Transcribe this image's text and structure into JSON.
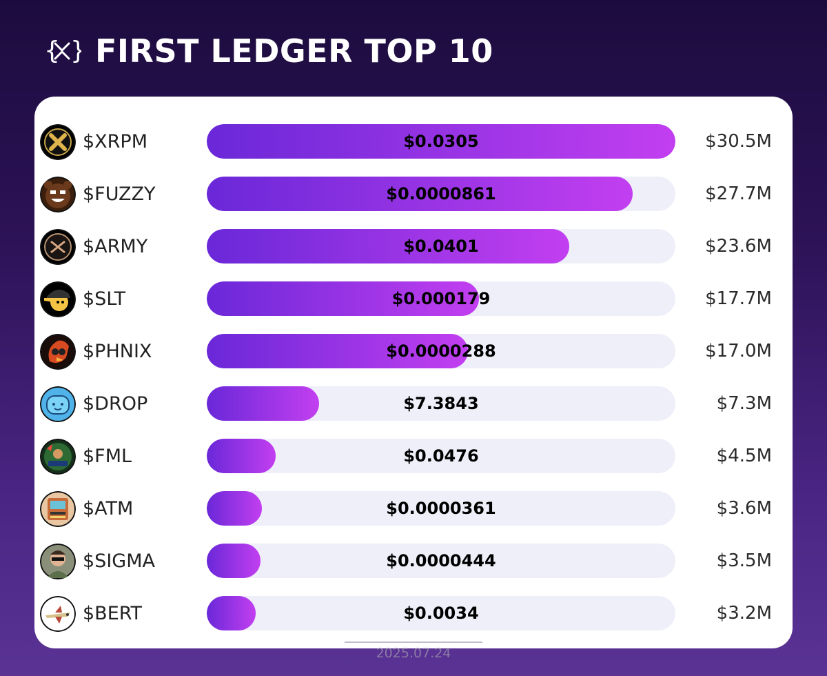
{
  "header": {
    "title": "FIRST LEDGER TOP 10",
    "logo_icon": "xrp-braces-logo"
  },
  "footer": {
    "date": "2025.07.24"
  },
  "colors": {
    "background_top": "#1c0c3e",
    "background_bottom": "#5a3394",
    "bar_start": "#6a28d8",
    "bar_end": "#c23ff0",
    "track": "#efeffa",
    "card": "#ffffff"
  },
  "chart_data": {
    "type": "bar",
    "orientation": "horizontal",
    "title": "FIRST LEDGER TOP 10",
    "categories": [
      "$XRPM",
      "$FUZZY",
      "$ARMY",
      "$SLT",
      "$PHNIX",
      "$DROP",
      "$FML",
      "$ATM",
      "$SIGMA",
      "$BERT"
    ],
    "values": [
      30.5,
      27.7,
      23.6,
      17.7,
      17.0,
      7.3,
      4.5,
      3.6,
      3.5,
      3.2
    ],
    "value_labels": [
      "$30.5M",
      "$27.7M",
      "$23.6M",
      "$17.7M",
      "$17.0M",
      "$7.3M",
      "$4.5M",
      "$3.6M",
      "$3.5M",
      "$3.2M"
    ],
    "bar_labels": [
      "$0.0305",
      "$0.0000861",
      "$0.0401",
      "$0.000179",
      "$0.0000288",
      "$7.3843",
      "$0.0476",
      "$0.0000361",
      "$0.0000444",
      "$0.0034"
    ],
    "icons": [
      "xrpm-token-icon",
      "fuzzy-bear-icon",
      "army-token-icon",
      "slt-cap-face-icon",
      "phnix-bird-icon",
      "drop-cloud-icon",
      "fml-florida-man-icon",
      "atm-machine-icon",
      "sigma-man-icon",
      "bert-plane-icon"
    ],
    "xlim": [
      0,
      30.5
    ],
    "grid": false,
    "legend": "none"
  }
}
